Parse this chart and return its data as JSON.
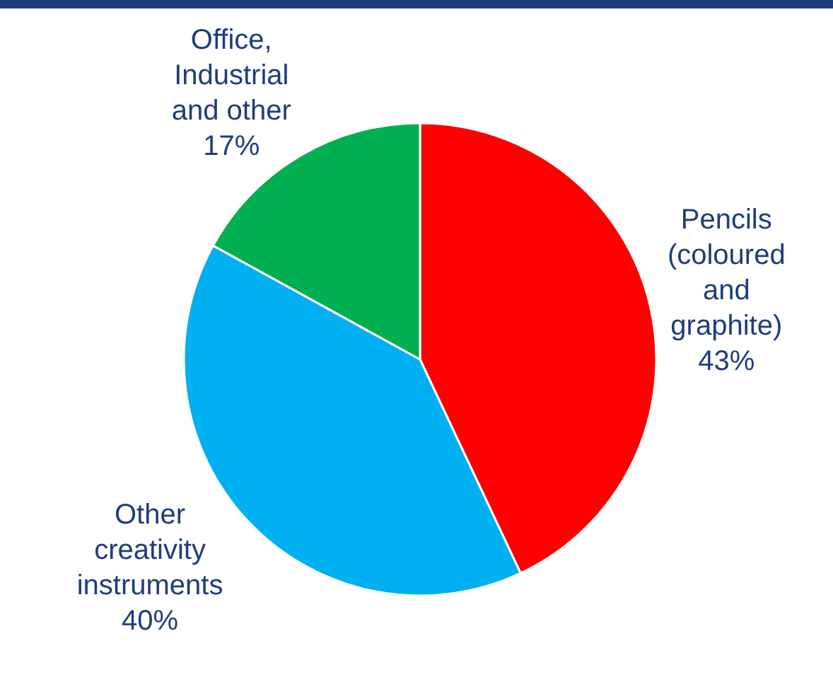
{
  "chart_data": {
    "type": "pie",
    "categories": [
      "Pencils (coloured and graphite)",
      "Other creativity instruments",
      "Office, Industrial and other"
    ],
    "values": [
      43,
      40,
      17
    ],
    "value_labels": [
      "43%",
      "40%",
      "17%"
    ],
    "colors": [
      "#ff0000",
      "#00b0f0",
      "#00b050"
    ]
  }
}
